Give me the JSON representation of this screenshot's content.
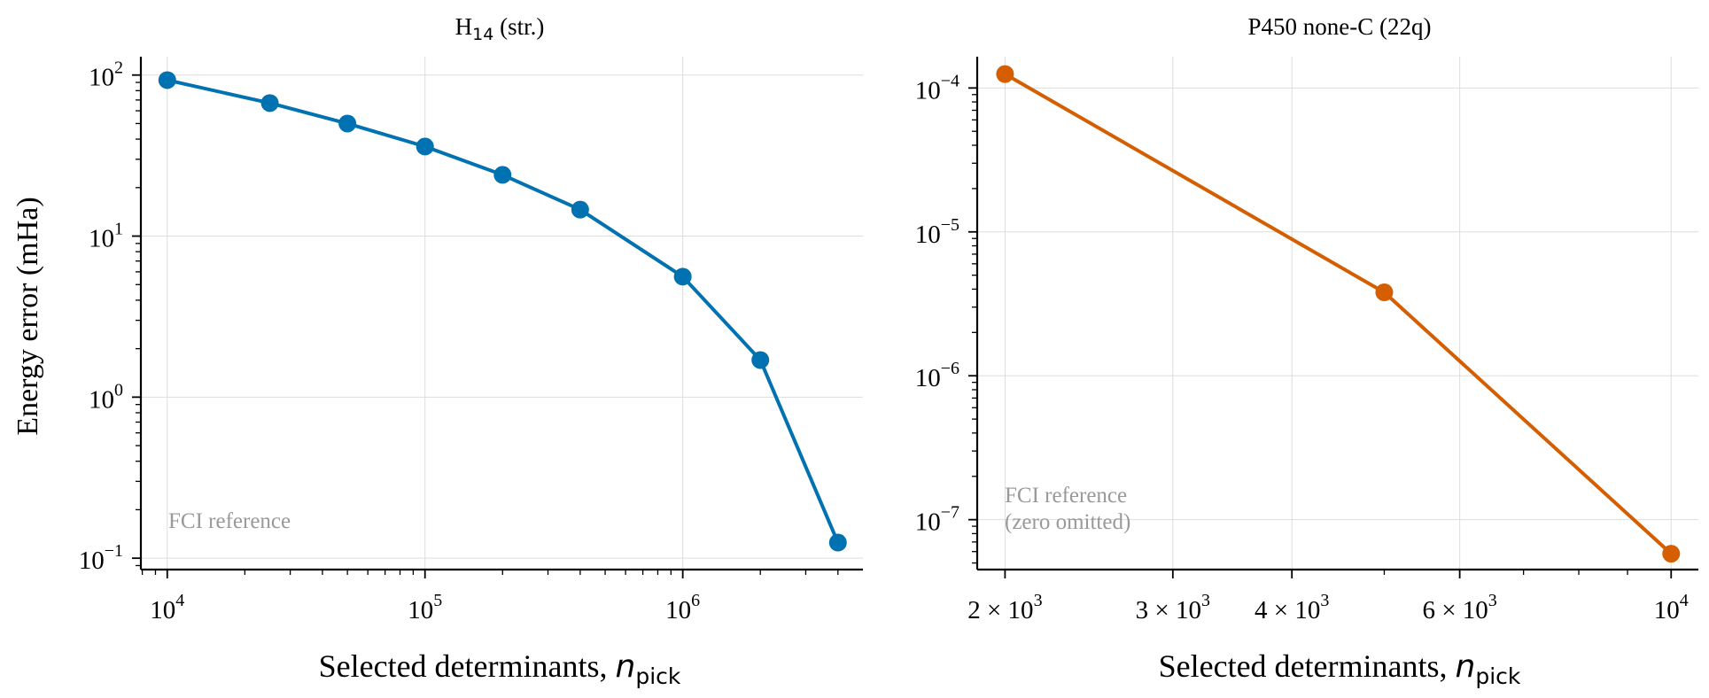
{
  "figure": {
    "ylabel": "Energy error (mHa)",
    "xlabel_text": "Selected determinants, ",
    "xlabel_math": "n",
    "xlabel_sub": "pick"
  },
  "chart_data": [
    {
      "type": "line",
      "title": "H",
      "title_sub": "14",
      "title_suffix": " (str.)",
      "xscale": "log",
      "yscale": "log",
      "xlim": [
        7900,
        5000000
      ],
      "ylim": [
        0.085,
        130
      ],
      "x": [
        10000,
        25000,
        50000,
        100000,
        200000,
        400000,
        1000000,
        2000000,
        4000000
      ],
      "series": [
        {
          "color": "#0072B2",
          "values": [
            93,
            67,
            50,
            36,
            24,
            14.6,
            5.6,
            1.7,
            0.125
          ]
        }
      ],
      "annotation": [
        "FCI reference"
      ],
      "grid": true,
      "xticks": [
        {
          "value": 10000,
          "base": "10",
          "exp": "4"
        },
        {
          "value": 100000,
          "base": "10",
          "exp": "5"
        },
        {
          "value": 1000000,
          "base": "10",
          "exp": "6"
        }
      ],
      "yticks": [
        {
          "value": 0.1,
          "base": "10",
          "exp": "−1"
        },
        {
          "value": 1,
          "base": "10",
          "exp": "0"
        },
        {
          "value": 10,
          "base": "10",
          "exp": "1"
        },
        {
          "value": 100,
          "base": "10",
          "exp": "2"
        }
      ]
    },
    {
      "type": "line",
      "title": "P450 none-C (22q)",
      "xscale": "log",
      "yscale": "log",
      "xlim": [
        1870,
        10680
      ],
      "ylim": [
        4.5e-08,
        0.000165
      ],
      "x": [
        2000,
        5000,
        10000
      ],
      "series": [
        {
          "color": "#D55E00",
          "values": [
            0.000125,
            3.8e-06,
            5.8e-08
          ]
        }
      ],
      "annotation": [
        "FCI reference",
        "(zero omitted)"
      ],
      "grid": true,
      "xticks": [
        {
          "value": 2000,
          "base": "2 × 10",
          "exp": "3"
        },
        {
          "value": 3000,
          "base": "3 × 10",
          "exp": "3"
        },
        {
          "value": 4000,
          "base": "4 × 10",
          "exp": "3"
        },
        {
          "value": 6000,
          "base": "6 × 10",
          "exp": "3"
        },
        {
          "value": 10000,
          "base": "10",
          "exp": "4"
        }
      ],
      "yticks": [
        {
          "value": 1e-07,
          "base": "10",
          "exp": "−7"
        },
        {
          "value": 1e-06,
          "base": "10",
          "exp": "−6"
        },
        {
          "value": 1e-05,
          "base": "10",
          "exp": "−5"
        },
        {
          "value": 0.0001,
          "base": "10",
          "exp": "−4"
        }
      ]
    }
  ]
}
